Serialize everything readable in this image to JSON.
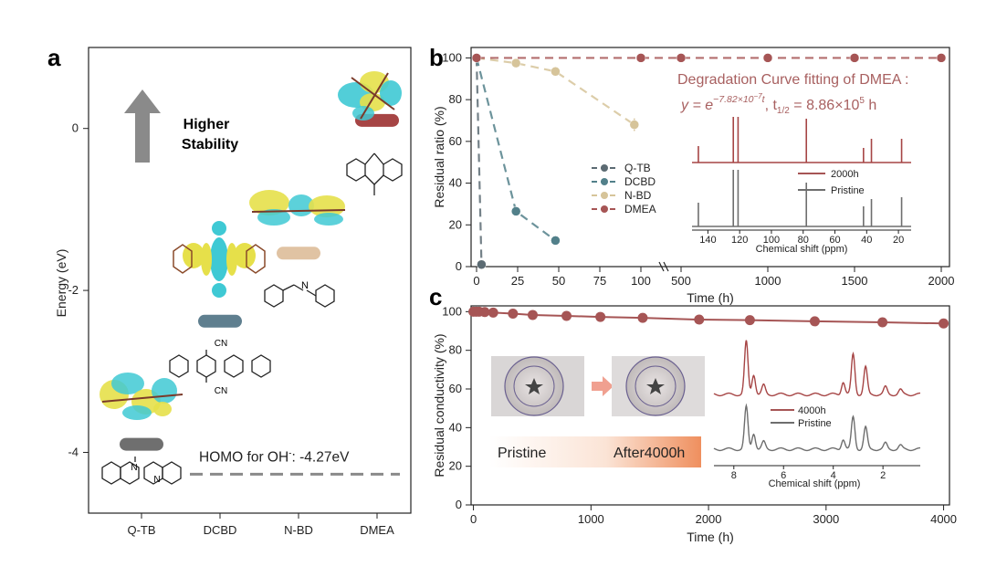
{
  "panels": {
    "a": "a",
    "b": "b",
    "c": "c"
  },
  "colors": {
    "qtb": "#5c6b73",
    "dcbd": "#52808a",
    "nbd": "#d6c49a",
    "dmea": "#a65555",
    "qtb_bar": "#6f6f6f",
    "dcbd_bar": "#5f7f8f",
    "nbd_bar": "#e0c3a3",
    "dmea_bar": "#a64545",
    "orbital_yellow": "#e6e04a",
    "orbital_cyan": "#3fc9d4"
  },
  "chart_data": [
    {
      "id": "a",
      "type": "level_diagram",
      "ylabel": "Energy (eV)",
      "ylim": [
        -4.75,
        1.0
      ],
      "yticks": [
        0,
        -2,
        -4
      ],
      "categories": [
        "Q-TB",
        "DCBD",
        "N-BD",
        "DMEA"
      ],
      "levels": [
        -3.9,
        -2.38,
        -1.54,
        0.1
      ],
      "reference": {
        "label": "HOMO for OH",
        "superscript": "-",
        "suffix": ": -4.27eV",
        "value": -4.27
      },
      "arrow_label": [
        "Higher",
        "Stability"
      ],
      "structure_labels": {
        "cn_top": "CN",
        "cn_bottom": "CN",
        "n_plus": "N",
        "n": "N"
      }
    },
    {
      "id": "b",
      "type": "line",
      "ylabel": "Residual ratio (%)",
      "xlabel": "Time (h)",
      "ylim": [
        0,
        105
      ],
      "yticks": [
        0,
        20,
        40,
        60,
        80,
        100
      ],
      "xticks_left": [
        0,
        25,
        50,
        75,
        100
      ],
      "xticks_right": [
        500,
        1000,
        1500,
        2000
      ],
      "series": [
        {
          "name": "Q-TB",
          "x": [
            0,
            3
          ],
          "y": [
            100,
            1
          ]
        },
        {
          "name": "DCBD",
          "x": [
            0,
            24,
            48
          ],
          "y": [
            100,
            26.5,
            12.5
          ],
          "err": [
            0,
            2,
            0
          ]
        },
        {
          "name": "N-BD",
          "x": [
            0,
            24,
            48,
            96
          ],
          "y": [
            100,
            97.5,
            93.5,
            68
          ],
          "err": [
            0,
            0,
            0,
            3
          ]
        },
        {
          "name": "DMEA",
          "x": [
            0,
            100,
            500,
            1000,
            1500,
            2000
          ],
          "y": [
            100,
            100,
            100,
            100,
            100,
            100
          ]
        }
      ],
      "annotation_title": "Degradation Curve fitting of DMEA :",
      "equation": {
        "lhs": "y = e",
        "exponent": "−7.82×10",
        "exp_power": "−7",
        "exp_var": "t",
        "half_life": ", t",
        "hl_sub": "1/2",
        "hl_value": " = 8.86×10",
        "hl_power": "5",
        "hl_unit": " h"
      },
      "inset": {
        "xlabel": "Chemical shift (ppm)",
        "xticks": [
          140,
          120,
          100,
          80,
          60,
          40,
          20
        ],
        "xlim": [
          150,
          12
        ],
        "legend": [
          "2000h",
          "Pristine"
        ],
        "peaks": [
          146,
          124,
          121,
          78,
          42,
          37,
          18
        ]
      }
    },
    {
      "id": "c",
      "type": "line",
      "ylabel": "Residual conductivity (%)",
      "xlabel": "Time (h)",
      "ylim": [
        0,
        103
      ],
      "xlim": [
        -20,
        4050
      ],
      "yticks": [
        0,
        20,
        40,
        60,
        80,
        100
      ],
      "xticks": [
        0,
        1000,
        2000,
        3000,
        4000
      ],
      "series": [
        {
          "name": "DMEA",
          "x": [
            0,
            24,
            48,
            96,
            168,
            336,
            504,
            792,
            1080,
            1440,
            1920,
            2352,
            2904,
            3480,
            4000
          ],
          "y": [
            100,
            100,
            100,
            99.8,
            99.5,
            99,
            98.3,
            97.8,
            97.3,
            96.8,
            95.9,
            95.6,
            95,
            94.5,
            93.9
          ]
        }
      ],
      "photo_labels": {
        "before": "Pristine",
        "after": "After4000h"
      },
      "inset": {
        "xlabel": "Chemical shift (ppm)",
        "xticks": [
          8,
          6,
          4,
          2
        ],
        "xlim": [
          8.8,
          0.5
        ],
        "legend": [
          "4000h",
          "Pristine"
        ]
      }
    }
  ]
}
